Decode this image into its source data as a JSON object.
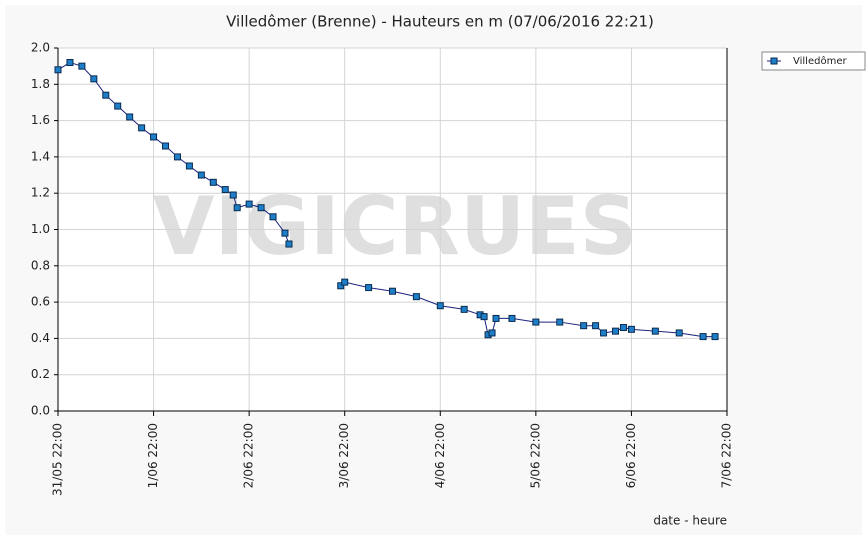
{
  "chart_data": {
    "type": "line",
    "title": "Villedômer (Brenne) - Hauteurs en m (07/06/2016 22:21)",
    "x_label": "date - heure",
    "watermark": "VIGICRUES",
    "legend_position": "top-right",
    "grid": true,
    "xlim": [
      "31/05 22:00",
      "7/06 22:00"
    ],
    "xticks": [
      "31/05 22:00",
      "1/06 22:00",
      "2/06 22:00",
      "3/06 22:00",
      "4/06 22:00",
      "5/06 22:00",
      "6/06 22:00",
      "7/06 22:00"
    ],
    "ylim": [
      0,
      2
    ],
    "yticks": [
      {
        "value": 0,
        "label": "0.0"
      },
      {
        "value": 0.2,
        "label": "0.2"
      },
      {
        "value": 0.4,
        "label": "0.4"
      },
      {
        "value": 0.6,
        "label": "0.6"
      },
      {
        "value": 0.8,
        "label": "0.8"
      },
      {
        "value": 1,
        "label": "1.0"
      },
      {
        "value": 1.2,
        "label": "1.2"
      },
      {
        "value": 1.4,
        "label": "1.4"
      },
      {
        "value": 1.6,
        "label": "1.6"
      },
      {
        "value": 1.8,
        "label": "1.8"
      },
      {
        "value": 2,
        "label": "2.0"
      }
    ],
    "x": [
      "31/05 22:00",
      "1/06 01:00",
      "1/06 04:00",
      "1/06 07:00",
      "1/06 10:00",
      "1/06 13:00",
      "1/06 16:00",
      "1/06 19:00",
      "1/06 22:00",
      "2/06 01:00",
      "2/06 04:00",
      "2/06 07:00",
      "2/06 10:00",
      "2/06 13:00",
      "2/06 16:00",
      "2/06 18:00",
      "2/06 19:00",
      "2/06 22:00",
      "3/06 01:00",
      "3/06 04:00",
      "3/06 07:00",
      "3/06 08:00",
      "3/06 15:00",
      "3/06 21:00",
      "3/06 22:00",
      "4/06 04:00",
      "4/06 10:00",
      "4/06 16:00",
      "4/06 22:00",
      "5/06 04:00",
      "5/06 08:00",
      "5/06 09:00",
      "5/06 10:00",
      "5/06 11:00",
      "5/06 12:00",
      "5/06 16:00",
      "5/06 22:00",
      "6/06 04:00",
      "6/06 10:00",
      "6/06 13:00",
      "6/06 15:00",
      "6/06 18:00",
      "6/06 20:00",
      "6/06 22:00",
      "7/06 04:00",
      "7/06 10:00",
      "7/06 16:00",
      "7/06 19:00"
    ],
    "series": [
      {
        "name": "Villedômer",
        "color": "#1e7fc8",
        "line_color": "#1a237e",
        "values": [
          1.88,
          1.92,
          1.9,
          1.83,
          1.74,
          1.68,
          1.62,
          1.56,
          1.51,
          1.46,
          1.4,
          1.35,
          1.3,
          1.26,
          1.22,
          1.19,
          1.12,
          1.14,
          1.12,
          1.07,
          0.98,
          0.92,
          null,
          0.69,
          0.71,
          0.68,
          0.66,
          0.63,
          0.58,
          0.56,
          0.53,
          0.52,
          0.42,
          0.43,
          0.51,
          0.51,
          0.49,
          0.49,
          0.47,
          0.47,
          0.43,
          0.44,
          0.46,
          0.45,
          0.44,
          0.43,
          0.41,
          0.41
        ]
      }
    ]
  }
}
